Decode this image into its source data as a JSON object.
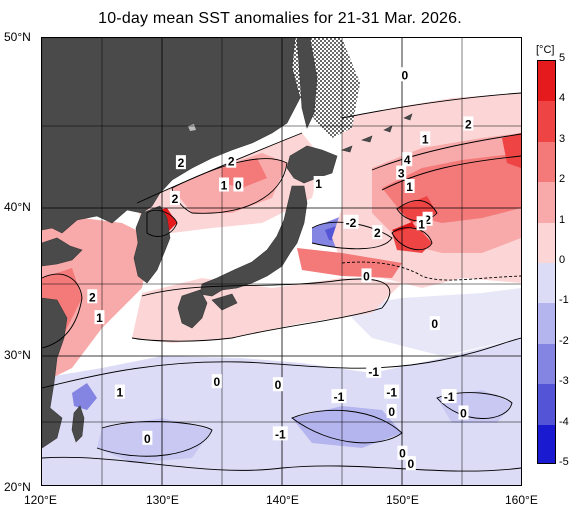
{
  "title": "10-day mean SST anomalies for 21-31 Mar. 2026.",
  "y_axis_labels": [
    "50°N",
    "40°N",
    "30°N",
    "20°N"
  ],
  "x_axis_labels": [
    "120°E",
    "130°E",
    "140°E",
    "150°E",
    "160°E"
  ],
  "colorbar": {
    "unit": "[°C]",
    "ticks": [
      "5",
      "4",
      "3",
      "2",
      "1",
      "0",
      "-1",
      "-2",
      "-3",
      "-4",
      "-5"
    ],
    "colors": [
      "#e41a1c",
      "#ef4444",
      "#f47a7a",
      "#f8a9a9",
      "#fcd6d6",
      "#ffffff",
      "#dcdcf6",
      "#b4b4ee",
      "#8484e2",
      "#5454d6",
      "#1a1ad0"
    ]
  },
  "colors": {
    "land": "#4a4a4a",
    "ocean_neutral": "#ffffff"
  },
  "contour_labels": [
    {
      "text": "0",
      "lon": 150.3,
      "lat": 47.5
    },
    {
      "text": "2",
      "lon": 155.6,
      "lat": 44.2
    },
    {
      "text": "1",
      "lon": 152.0,
      "lat": 43.2
    },
    {
      "text": "4",
      "lon": 150.5,
      "lat": 41.8
    },
    {
      "text": "3",
      "lon": 150.0,
      "lat": 40.9
    },
    {
      "text": "1",
      "lon": 150.7,
      "lat": 40.0
    },
    {
      "text": "2",
      "lon": 131.6,
      "lat": 41.6
    },
    {
      "text": "2",
      "lon": 135.8,
      "lat": 41.7
    },
    {
      "text": "1",
      "lon": 135.2,
      "lat": 40.1
    },
    {
      "text": "0",
      "lon": 136.4,
      "lat": 40.1
    },
    {
      "text": "1",
      "lon": 143.1,
      "lat": 40.2
    },
    {
      "text": "2",
      "lon": 131.1,
      "lat": 39.2
    },
    {
      "text": "-2",
      "lon": 145.8,
      "lat": 37.6
    },
    {
      "text": "2",
      "lon": 148.0,
      "lat": 36.9
    },
    {
      "text": "2",
      "lon": 152.2,
      "lat": 37.8
    },
    {
      "text": "1",
      "lon": 151.7,
      "lat": 37.5
    },
    {
      "text": "0",
      "lon": 147.1,
      "lat": 34.0
    },
    {
      "text": "2",
      "lon": 124.2,
      "lat": 32.6
    },
    {
      "text": "1",
      "lon": 124.8,
      "lat": 31.2
    },
    {
      "text": "0",
      "lon": 152.8,
      "lat": 30.8
    },
    {
      "text": "-1",
      "lon": 147.7,
      "lat": 27.6
    },
    {
      "text": "0",
      "lon": 134.6,
      "lat": 26.9
    },
    {
      "text": "0",
      "lon": 139.7,
      "lat": 26.7
    },
    {
      "text": "1",
      "lon": 126.5,
      "lat": 26.2
    },
    {
      "text": "-1",
      "lon": 149.2,
      "lat": 26.2
    },
    {
      "text": "-1",
      "lon": 144.8,
      "lat": 25.9
    },
    {
      "text": "-1",
      "lon": 154.0,
      "lat": 25.9
    },
    {
      "text": "0",
      "lon": 149.2,
      "lat": 24.9
    },
    {
      "text": "0",
      "lon": 155.2,
      "lat": 24.8
    },
    {
      "text": "0",
      "lon": 128.8,
      "lat": 23.1
    },
    {
      "text": "-1",
      "lon": 139.9,
      "lat": 23.4
    },
    {
      "text": "0",
      "lon": 150.1,
      "lat": 22.1
    },
    {
      "text": "0",
      "lon": 150.8,
      "lat": 21.4
    }
  ]
}
